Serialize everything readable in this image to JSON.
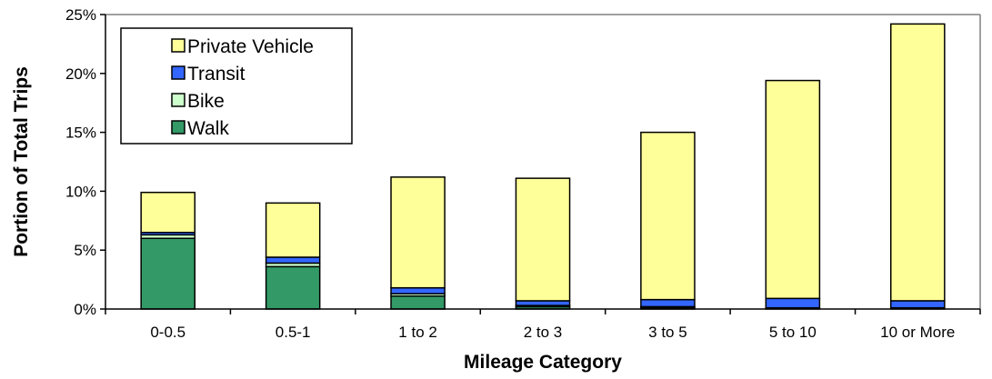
{
  "chart_data": {
    "type": "bar",
    "stacked": true,
    "title": "",
    "xlabel": "Mileage Category",
    "ylabel": "Portion of Total Trips",
    "ylim": [
      0,
      25
    ],
    "y_tick_step": 5,
    "y_tick_labels": [
      "0%",
      "5%",
      "10%",
      "15%",
      "20%",
      "25%"
    ],
    "grid": false,
    "legend_position": "top-left",
    "categories": [
      "0-0.5",
      "0.5-1",
      "1 to 2",
      "2 to 3",
      "3 to 5",
      "5 to 10",
      "10 or More"
    ],
    "series": [
      {
        "name": "Walk",
        "color": "#339966",
        "values": [
          6.0,
          3.6,
          1.1,
          0.2,
          0.1,
          0.1,
          0.1
        ]
      },
      {
        "name": "Bike",
        "color": "#CCFFCC",
        "values": [
          0.3,
          0.3,
          0.2,
          0.1,
          0.1,
          0.0,
          0.0
        ]
      },
      {
        "name": "Transit",
        "color": "#3366FF",
        "values": [
          0.2,
          0.5,
          0.5,
          0.4,
          0.6,
          0.8,
          0.6
        ]
      },
      {
        "name": "Private Vehicle",
        "color": "#FFFF99",
        "values": [
          3.4,
          4.6,
          9.4,
          10.4,
          14.2,
          18.5,
          23.5
        ]
      }
    ],
    "legend_order": [
      "Private Vehicle",
      "Transit",
      "Bike",
      "Walk"
    ]
  }
}
